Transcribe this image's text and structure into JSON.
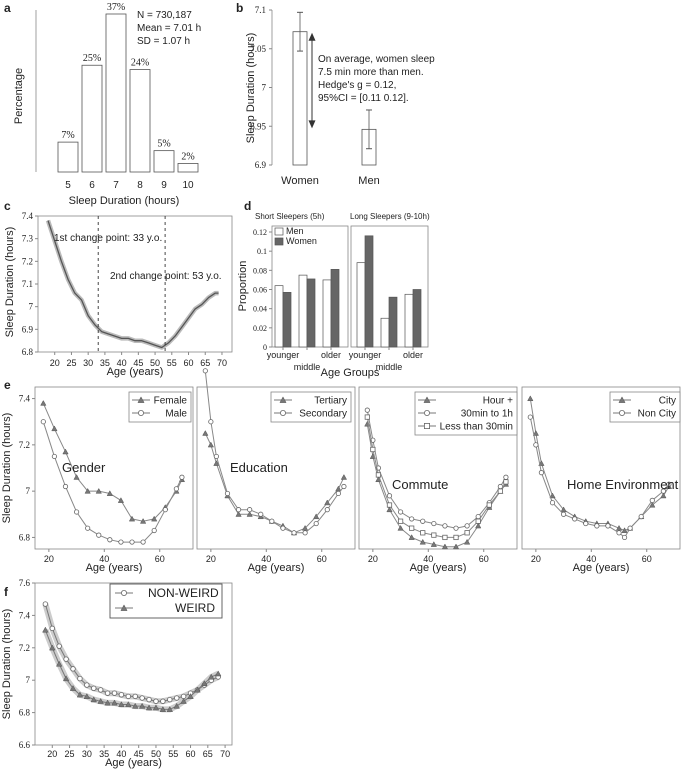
{
  "chart_data": [
    {
      "panel": "a",
      "type": "bar",
      "xlabel": "Sleep Duration (hours)",
      "ylabel": "Percentage",
      "categories": [
        "5",
        "6",
        "7",
        "8",
        "9",
        "10"
      ],
      "values": [
        7,
        25,
        37,
        24,
        5,
        2
      ],
      "value_labels": [
        "7%",
        "25%",
        "37%",
        "24%",
        "5%",
        "2%"
      ],
      "ylim": [
        0,
        37
      ],
      "stats": [
        "N = 730,187",
        "Mean = 7.01 h",
        "SD = 1.07 h"
      ]
    },
    {
      "panel": "b",
      "type": "bar",
      "ylabel": "Sleep Duration (hours)",
      "categories": [
        "Women",
        "Men"
      ],
      "values": [
        7.072,
        6.946
      ],
      "error": [
        0.025,
        0.025
      ],
      "ylim": [
        6.9,
        7.1
      ],
      "yticks": [
        6.9,
        6.95,
        7,
        7.05,
        7.1
      ],
      "ytick_labels": [
        "6.9",
        "6.95",
        "7",
        "7.05",
        "7.1"
      ],
      "annotation": [
        "On average, women sleep",
        "7.5 min more than men.",
        "Hedge's g = 0.12,",
        "95%CI = [0.11 0.12]."
      ]
    },
    {
      "panel": "c",
      "type": "line",
      "xlabel": "Age (years)",
      "ylabel": "Sleep Duration (hours)",
      "xlim": [
        15,
        73
      ],
      "ylim": [
        6.8,
        7.4
      ],
      "xticks": [
        20,
        25,
        30,
        35,
        40,
        45,
        50,
        55,
        60,
        65,
        70
      ],
      "yticks": [
        6.8,
        6.9,
        7,
        7.1,
        7.2,
        7.3,
        7.4
      ],
      "ytick_labels": [
        "6.8",
        "6.9",
        "7",
        "7.1",
        "7.2",
        "7.3",
        "7.4"
      ],
      "x": [
        18,
        20,
        22,
        24,
        26,
        28,
        30,
        32,
        34,
        36,
        38,
        40,
        42,
        44,
        46,
        48,
        50,
        52,
        54,
        56,
        58,
        60,
        62,
        64,
        66,
        68,
        69
      ],
      "y": [
        7.38,
        7.29,
        7.2,
        7.12,
        7.06,
        7.03,
        6.96,
        6.92,
        6.89,
        6.88,
        6.87,
        6.86,
        6.86,
        6.85,
        6.85,
        6.84,
        6.83,
        6.82,
        6.84,
        6.87,
        6.91,
        6.95,
        6.99,
        7.01,
        7.04,
        7.06,
        7.06
      ],
      "change_points": [
        33,
        53
      ],
      "annotations": [
        "1st change point: 33 y.o.",
        "2nd change point: 53 y.o."
      ]
    },
    {
      "panel": "d",
      "type": "bar",
      "xlabel": "Age Groups",
      "ylabel": "Proportion",
      "ylim": [
        0,
        0.12
      ],
      "yticks": [
        0,
        0.02,
        0.04,
        0.06,
        0.08,
        0.1,
        0.12
      ],
      "ytick_labels": [
        "0",
        "0.02",
        "0.04",
        "0.06",
        "0.08",
        "0.1",
        "0.12"
      ],
      "facets": [
        "Short Sleepers (5h)",
        "Long Sleepers (9-10h)"
      ],
      "categories": [
        "younger",
        "middle",
        "older"
      ],
      "series": [
        {
          "name": "Men",
          "short": [
            0.064,
            0.075,
            0.07
          ],
          "long": [
            0.088,
            0.03,
            0.055
          ]
        },
        {
          "name": "Women",
          "short": [
            0.057,
            0.071,
            0.081
          ],
          "long": [
            0.116,
            0.052,
            0.06
          ]
        }
      ]
    },
    {
      "panel": "e1",
      "type": "line",
      "ylabel": "Sleep Duration (hours)",
      "xlabel": "Age (years)",
      "title": "Gender",
      "xlim": [
        15,
        72
      ],
      "ylim": [
        6.75,
        7.45
      ],
      "xticks": [
        20,
        40,
        60
      ],
      "yticks": [
        6.8,
        7,
        7.2,
        7.4
      ],
      "ytick_labels": [
        "6.8",
        "7",
        "7.2",
        "7.4"
      ],
      "x": [
        18,
        22,
        26,
        30,
        34,
        38,
        42,
        46,
        50,
        54,
        58,
        62,
        66,
        68
      ],
      "series": [
        {
          "name": "Female",
          "marker": "triangle",
          "values": [
            7.38,
            7.27,
            7.17,
            7.06,
            7.0,
            7.0,
            6.99,
            6.96,
            6.88,
            6.87,
            6.88,
            6.93,
            7.0,
            7.05
          ]
        },
        {
          "name": "Male",
          "marker": "circle",
          "values": [
            7.3,
            7.15,
            7.02,
            6.91,
            6.84,
            6.81,
            6.79,
            6.78,
            6.78,
            6.78,
            6.83,
            6.92,
            7.01,
            7.06
          ]
        }
      ]
    },
    {
      "panel": "e2",
      "type": "line",
      "xlabel": "Age (years)",
      "title": "Education",
      "xlim": [
        15,
        72
      ],
      "ylim": [
        6.75,
        7.45
      ],
      "xticks": [
        20,
        40,
        60
      ],
      "x": [
        18,
        20,
        22,
        26,
        30,
        34,
        38,
        42,
        46,
        50,
        54,
        58,
        62,
        66,
        68
      ],
      "series": [
        {
          "name": "Tertiary",
          "marker": "triangle",
          "values": [
            7.25,
            7.2,
            7.12,
            6.98,
            6.9,
            6.9,
            6.89,
            6.87,
            6.85,
            6.82,
            6.84,
            6.89,
            6.95,
            7.01,
            7.06
          ]
        },
        {
          "name": "Secondary",
          "marker": "circle",
          "values": [
            7.52,
            7.3,
            7.15,
            6.99,
            6.92,
            6.92,
            6.9,
            6.87,
            6.84,
            6.82,
            6.82,
            6.86,
            6.92,
            6.99,
            7.02
          ]
        }
      ]
    },
    {
      "panel": "e3",
      "type": "line",
      "xlabel": "Age (years)",
      "title": "Commute",
      "xlim": [
        15,
        72
      ],
      "ylim": [
        6.75,
        7.45
      ],
      "xticks": [
        20,
        40,
        60
      ],
      "x": [
        18,
        20,
        22,
        26,
        30,
        34,
        38,
        42,
        46,
        50,
        54,
        58,
        62,
        66,
        68
      ],
      "series": [
        {
          "name": "Hour +",
          "marker": "triangle",
          "values": [
            7.29,
            7.15,
            7.05,
            6.92,
            6.84,
            6.8,
            6.78,
            6.77,
            6.76,
            6.76,
            6.78,
            6.85,
            6.93,
            7.0,
            7.03
          ]
        },
        {
          "name": "30min to 1h",
          "marker": "circle",
          "values": [
            7.35,
            7.22,
            7.1,
            6.98,
            6.91,
            6.88,
            6.87,
            6.86,
            6.85,
            6.84,
            6.85,
            6.89,
            6.95,
            7.02,
            7.06
          ]
        },
        {
          "name": "Less than 30min",
          "marker": "square",
          "values": [
            7.32,
            7.18,
            7.07,
            6.94,
            6.87,
            6.84,
            6.82,
            6.81,
            6.8,
            6.8,
            6.82,
            6.87,
            6.94,
            7.0,
            7.04
          ]
        }
      ]
    },
    {
      "panel": "e4",
      "type": "line",
      "xlabel": "Age (years)",
      "title": "Home Environment",
      "xlim": [
        15,
        72
      ],
      "ylim": [
        6.75,
        7.45
      ],
      "xticks": [
        20,
        40,
        60
      ],
      "x": [
        18,
        20,
        22,
        26,
        30,
        34,
        38,
        42,
        46,
        50,
        52,
        54,
        58,
        62,
        66,
        68
      ],
      "series": [
        {
          "name": "City",
          "marker": "triangle",
          "values": [
            7.4,
            7.25,
            7.12,
            6.98,
            6.92,
            6.89,
            6.87,
            6.86,
            6.86,
            6.84,
            6.83,
            6.84,
            6.89,
            6.94,
            6.98,
            7.02
          ]
        },
        {
          "name": "Non City",
          "marker": "circle",
          "values": [
            7.32,
            7.2,
            7.08,
            6.95,
            6.9,
            6.88,
            6.86,
            6.85,
            6.85,
            6.82,
            6.8,
            6.84,
            6.89,
            6.96,
            7.0,
            7.03
          ]
        }
      ]
    },
    {
      "panel": "f",
      "type": "line",
      "xlabel": "Age (years)",
      "ylabel": "Sleep Duration (hours)",
      "xlim": [
        15,
        72
      ],
      "ylim": [
        6.6,
        7.6
      ],
      "xticks": [
        20,
        25,
        30,
        35,
        40,
        45,
        50,
        55,
        60,
        65,
        70
      ],
      "yticks": [
        6.6,
        6.8,
        7,
        7.2,
        7.4,
        7.6
      ],
      "ytick_labels": [
        "6.6",
        "6.8",
        "7",
        "7.2",
        "7.4",
        "7.6"
      ],
      "series": [
        {
          "name": "NON-WEIRD",
          "marker": "circle",
          "x": [
            18,
            20,
            22,
            24,
            26,
            28,
            30,
            32,
            34,
            36,
            38,
            40,
            42,
            44,
            46,
            48,
            50,
            52,
            54,
            56,
            58,
            60,
            62,
            64,
            66,
            68
          ],
          "values": [
            7.47,
            7.32,
            7.21,
            7.13,
            7.07,
            7.01,
            6.97,
            6.95,
            6.94,
            6.92,
            6.92,
            6.91,
            6.9,
            6.9,
            6.89,
            6.88,
            6.87,
            6.87,
            6.88,
            6.89,
            6.9,
            6.92,
            6.94,
            6.97,
            7.0,
            7.02
          ]
        },
        {
          "name": "WEIRD",
          "marker": "triangle",
          "x": [
            18,
            20,
            22,
            24,
            26,
            28,
            30,
            32,
            34,
            36,
            38,
            40,
            42,
            44,
            46,
            48,
            50,
            52,
            54,
            56,
            58,
            60,
            62,
            64,
            66,
            68
          ],
          "values": [
            7.31,
            7.2,
            7.1,
            7.01,
            6.95,
            6.91,
            6.9,
            6.88,
            6.87,
            6.86,
            6.86,
            6.85,
            6.85,
            6.84,
            6.84,
            6.83,
            6.83,
            6.82,
            6.82,
            6.84,
            6.87,
            6.9,
            6.94,
            6.98,
            7.02,
            7.04
          ]
        }
      ]
    }
  ]
}
